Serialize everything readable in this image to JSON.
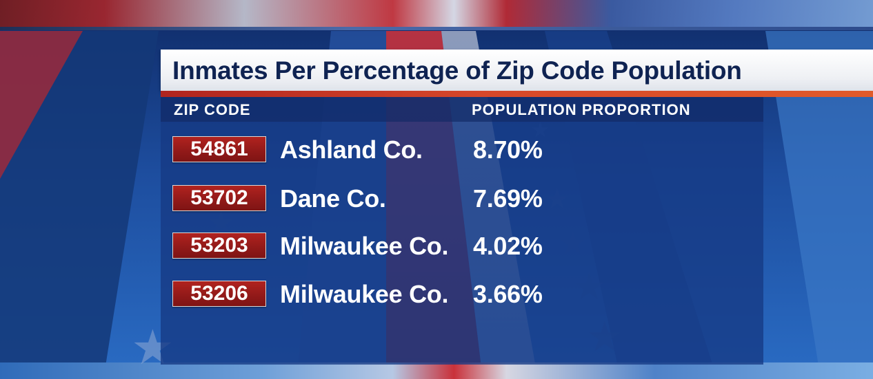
{
  "title": "Inmates Per Percentage of Zip Code Population",
  "columns": {
    "zip": "ZIP CODE",
    "proportion": "POPULATION PROPORTION"
  },
  "rows": [
    {
      "zip": "54861",
      "county": "Ashland Co.",
      "proportion": "8.70%"
    },
    {
      "zip": "53702",
      "county": "Dane Co.",
      "proportion": "7.69%"
    },
    {
      "zip": "53203",
      "county": "Milwaukee Co.",
      "proportion": "4.02%"
    },
    {
      "zip": "53206",
      "county": "Milwaukee Co.",
      "proportion": "3.66%"
    }
  ],
  "colors": {
    "title_text": "#0f2352",
    "accent_bar": "#d6472a",
    "zip_badge": "#a31f1d",
    "panel": "#163a84"
  }
}
